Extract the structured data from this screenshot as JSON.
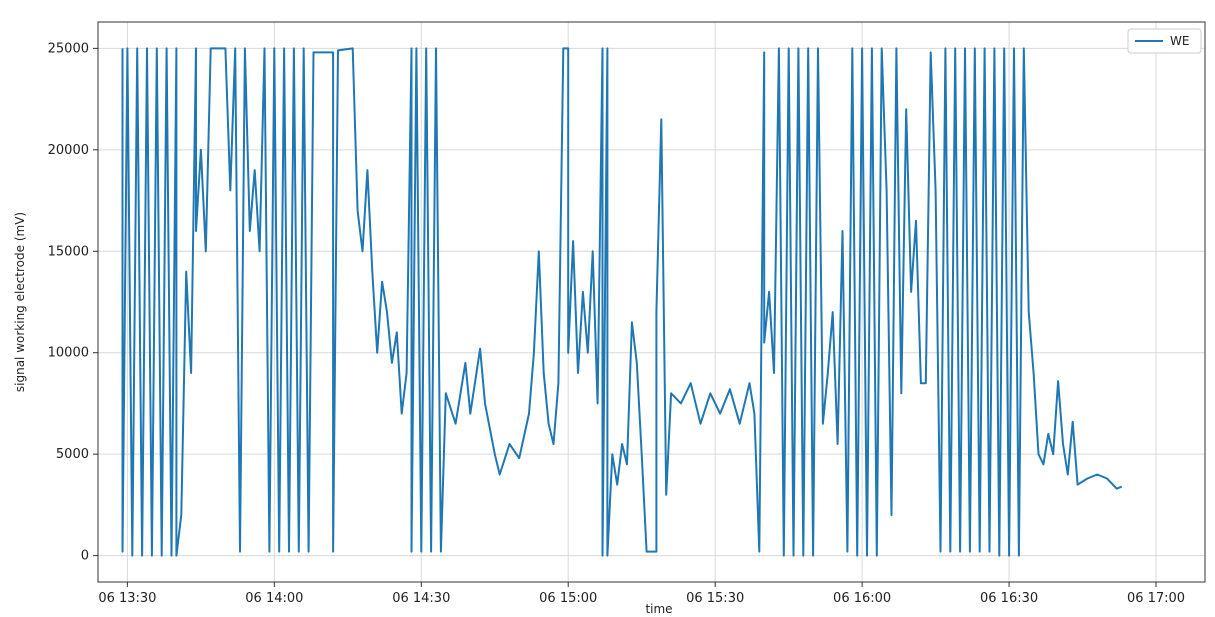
{
  "chart_data": {
    "type": "line",
    "title": "",
    "xlabel": "time",
    "ylabel": "signal working electrode (mV)",
    "grid": true,
    "legend_position": "top-right",
    "colors": {
      "series": "#1f77b4",
      "grid": "#d9d9d9",
      "axes": "#333333"
    },
    "x_ticks": [
      "06 13:30",
      "06 14:00",
      "06 14:30",
      "06 15:00",
      "06 15:30",
      "06 16:00",
      "06 16:30",
      "06 17:00"
    ],
    "y_ticks": [
      0,
      5000,
      10000,
      15000,
      20000,
      25000
    ],
    "ylim": [
      -1300,
      26300
    ],
    "xlim": [
      "06 13:24",
      "06 17:10"
    ],
    "series": [
      {
        "name": "WE",
        "sampling_note": "approximate trace read from the figure; bands of rapid switching between 0 and 25000 mV",
        "points": [
          [
            "06 13:29",
            25000
          ],
          [
            "06 13:29",
            200
          ],
          [
            "06 13:30",
            25000
          ],
          [
            "06 13:31",
            0
          ],
          [
            "06 13:32",
            25000
          ],
          [
            "06 13:33",
            0
          ],
          [
            "06 13:34",
            25000
          ],
          [
            "06 13:35",
            0
          ],
          [
            "06 13:36",
            25000
          ],
          [
            "06 13:37",
            0
          ],
          [
            "06 13:38",
            25000
          ],
          [
            "06 13:39",
            0
          ],
          [
            "06 13:40",
            25000
          ],
          [
            "06 13:40",
            0
          ],
          [
            "06 13:41",
            2000
          ],
          [
            "06 13:42",
            14000
          ],
          [
            "06 13:43",
            9000
          ],
          [
            "06 13:44",
            25000
          ],
          [
            "06 13:44",
            16000
          ],
          [
            "06 13:45",
            20000
          ],
          [
            "06 13:46",
            15000
          ],
          [
            "06 13:47",
            25000
          ],
          [
            "06 13:50",
            25000
          ],
          [
            "06 13:51",
            18000
          ],
          [
            "06 13:52",
            25000
          ],
          [
            "06 13:53",
            200
          ],
          [
            "06 13:54",
            25000
          ],
          [
            "06 13:55",
            16000
          ],
          [
            "06 13:56",
            19000
          ],
          [
            "06 13:57",
            15000
          ],
          [
            "06 13:58",
            25000
          ],
          [
            "06 13:59",
            200
          ],
          [
            "06 14:00",
            25000
          ],
          [
            "06 14:01",
            200
          ],
          [
            "06 14:02",
            25000
          ],
          [
            "06 14:03",
            200
          ],
          [
            "06 14:04",
            25000
          ],
          [
            "06 14:05",
            200
          ],
          [
            "06 14:06",
            25000
          ],
          [
            "06 14:07",
            200
          ],
          [
            "06 14:08",
            24800
          ],
          [
            "06 14:12",
            24800
          ],
          [
            "06 14:12",
            200
          ],
          [
            "06 14:13",
            24900
          ],
          [
            "06 14:16",
            25000
          ],
          [
            "06 14:17",
            17000
          ],
          [
            "06 14:18",
            15000
          ],
          [
            "06 14:19",
            19000
          ],
          [
            "06 14:20",
            14000
          ],
          [
            "06 14:21",
            10000
          ],
          [
            "06 14:22",
            13500
          ],
          [
            "06 14:23",
            12000
          ],
          [
            "06 14:24",
            9500
          ],
          [
            "06 14:25",
            11000
          ],
          [
            "06 14:26",
            7000
          ],
          [
            "06 14:27",
            9000
          ],
          [
            "06 14:28",
            25000
          ],
          [
            "06 14:28",
            200
          ],
          [
            "06 14:29",
            25000
          ],
          [
            "06 14:30",
            200
          ],
          [
            "06 14:31",
            25000
          ],
          [
            "06 14:32",
            200
          ],
          [
            "06 14:33",
            25000
          ],
          [
            "06 14:34",
            200
          ],
          [
            "06 14:35",
            8000
          ],
          [
            "06 14:37",
            6500
          ],
          [
            "06 14:39",
            9500
          ],
          [
            "06 14:40",
            7000
          ],
          [
            "06 14:42",
            10200
          ],
          [
            "06 14:43",
            7500
          ],
          [
            "06 14:45",
            5000
          ],
          [
            "06 14:46",
            4000
          ],
          [
            "06 14:48",
            5500
          ],
          [
            "06 14:50",
            4800
          ],
          [
            "06 14:52",
            7000
          ],
          [
            "06 14:53",
            10000
          ],
          [
            "06 14:54",
            15000
          ],
          [
            "06 14:55",
            9000
          ],
          [
            "06 14:56",
            6500
          ],
          [
            "06 14:57",
            5500
          ],
          [
            "06 14:58",
            8500
          ],
          [
            "06 14:59",
            25000
          ],
          [
            "06 15:00",
            25000
          ],
          [
            "06 15:00",
            10000
          ],
          [
            "06 15:01",
            15500
          ],
          [
            "06 15:02",
            9000
          ],
          [
            "06 15:03",
            13000
          ],
          [
            "06 15:04",
            10000
          ],
          [
            "06 15:05",
            15000
          ],
          [
            "06 15:06",
            7500
          ],
          [
            "06 15:07",
            25000
          ],
          [
            "06 15:07",
            0
          ],
          [
            "06 15:08",
            25000
          ],
          [
            "06 15:08",
            0
          ],
          [
            "06 15:09",
            5000
          ],
          [
            "06 15:10",
            3500
          ],
          [
            "06 15:11",
            5500
          ],
          [
            "06 15:12",
            4500
          ],
          [
            "06 15:13",
            11500
          ],
          [
            "06 15:14",
            9500
          ],
          [
            "06 15:15",
            5000
          ],
          [
            "06 15:16",
            200
          ],
          [
            "06 15:18",
            200
          ],
          [
            "06 15:18",
            12000
          ],
          [
            "06 15:19",
            21500
          ],
          [
            "06 15:20",
            3000
          ],
          [
            "06 15:21",
            8000
          ],
          [
            "06 15:23",
            7500
          ],
          [
            "06 15:25",
            8500
          ],
          [
            "06 15:27",
            6500
          ],
          [
            "06 15:29",
            8000
          ],
          [
            "06 15:31",
            7000
          ],
          [
            "06 15:33",
            8200
          ],
          [
            "06 15:35",
            6500
          ],
          [
            "06 15:37",
            8500
          ],
          [
            "06 15:38",
            7000
          ],
          [
            "06 15:39",
            200
          ],
          [
            "06 15:40",
            24800
          ],
          [
            "06 15:40",
            10500
          ],
          [
            "06 15:41",
            13000
          ],
          [
            "06 15:42",
            9000
          ],
          [
            "06 15:43",
            25000
          ],
          [
            "06 15:44",
            0
          ],
          [
            "06 15:45",
            25000
          ],
          [
            "06 15:46",
            0
          ],
          [
            "06 15:47",
            25000
          ],
          [
            "06 15:48",
            0
          ],
          [
            "06 15:49",
            25000
          ],
          [
            "06 15:50",
            0
          ],
          [
            "06 15:51",
            25000
          ],
          [
            "06 15:52",
            6500
          ],
          [
            "06 15:53",
            9000
          ],
          [
            "06 15:54",
            12000
          ],
          [
            "06 15:55",
            5500
          ],
          [
            "06 15:56",
            16000
          ],
          [
            "06 15:57",
            200
          ],
          [
            "06 15:58",
            25000
          ],
          [
            "06 15:59",
            0
          ],
          [
            "06 16:00",
            25000
          ],
          [
            "06 16:01",
            0
          ],
          [
            "06 16:02",
            25000
          ],
          [
            "06 16:03",
            0
          ],
          [
            "06 16:04",
            25000
          ],
          [
            "06 16:05",
            18000
          ],
          [
            "06 16:06",
            2000
          ],
          [
            "06 16:07",
            25000
          ],
          [
            "06 16:08",
            8000
          ],
          [
            "06 16:09",
            22000
          ],
          [
            "06 16:10",
            13000
          ],
          [
            "06 16:11",
            16500
          ],
          [
            "06 16:12",
            8500
          ],
          [
            "06 16:13",
            8500
          ],
          [
            "06 16:14",
            24800
          ],
          [
            "06 16:15",
            18000
          ],
          [
            "06 16:16",
            200
          ],
          [
            "06 16:17",
            25000
          ],
          [
            "06 16:18",
            200
          ],
          [
            "06 16:19",
            25000
          ],
          [
            "06 16:20",
            200
          ],
          [
            "06 16:21",
            25000
          ],
          [
            "06 16:22",
            200
          ],
          [
            "06 16:23",
            25000
          ],
          [
            "06 16:24",
            200
          ],
          [
            "06 16:25",
            25000
          ],
          [
            "06 16:26",
            200
          ],
          [
            "06 16:27",
            25000
          ],
          [
            "06 16:28",
            0
          ],
          [
            "06 16:29",
            25000
          ],
          [
            "06 16:30",
            0
          ],
          [
            "06 16:31",
            25000
          ],
          [
            "06 16:32",
            0
          ],
          [
            "06 16:33",
            25000
          ],
          [
            "06 16:34",
            12000
          ],
          [
            "06 16:35",
            9000
          ],
          [
            "06 16:36",
            5000
          ],
          [
            "06 16:37",
            4500
          ],
          [
            "06 16:38",
            6000
          ],
          [
            "06 16:39",
            5000
          ],
          [
            "06 16:40",
            8600
          ],
          [
            "06 16:41",
            5500
          ],
          [
            "06 16:42",
            4000
          ],
          [
            "06 16:43",
            6600
          ],
          [
            "06 16:44",
            3500
          ],
          [
            "06 16:46",
            3800
          ],
          [
            "06 16:48",
            4000
          ],
          [
            "06 16:50",
            3800
          ],
          [
            "06 16:52",
            3300
          ],
          [
            "06 16:53",
            3400
          ]
        ]
      }
    ]
  }
}
